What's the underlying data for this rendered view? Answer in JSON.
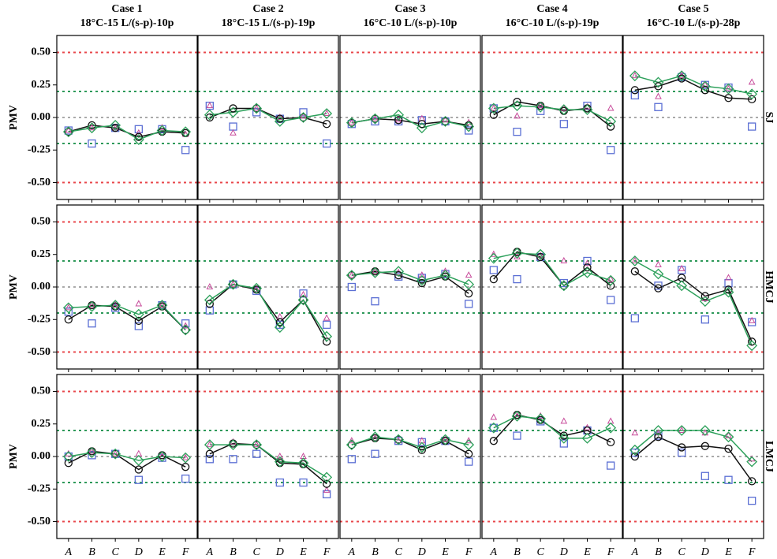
{
  "chart_data": {
    "type": "line",
    "y_label": "PMV",
    "categories": [
      "A",
      "B",
      "C",
      "D",
      "E",
      "F"
    ],
    "ylim": [
      -0.63,
      0.63
    ],
    "yticks": [
      {
        "value": 0.5,
        "label": "0.50"
      },
      {
        "value": 0.25,
        "label": "0.25"
      },
      {
        "value": 0,
        "label": "0.00"
      },
      {
        "value": -0.25,
        "label": "-0.25"
      },
      {
        "value": -0.5,
        "label": "-0.50"
      }
    ],
    "reference_lines": [
      {
        "value": 0.5,
        "color": "#e8474b"
      },
      {
        "value": 0.2,
        "color": "#2e9a5a"
      },
      {
        "value": 0,
        "color": "#aaaaaa"
      },
      {
        "value": -0.2,
        "color": "#2e9a5a"
      },
      {
        "value": -0.5,
        "color": "#e8474b"
      }
    ],
    "columns": [
      {
        "title": "Case 1",
        "subtitle": "18°C-15 L/(s-p)-10p"
      },
      {
        "title": "Case 2",
        "subtitle": "18°C-15 L/(s-p)-19p"
      },
      {
        "title": "Case 3",
        "subtitle": "16°C-10 L/(s-p)-10p"
      },
      {
        "title": "Case 4",
        "subtitle": "16°C-10 L/(s-p)-19p"
      },
      {
        "title": "Case 5",
        "subtitle": "16°C-10 L/(s-p)-28p"
      }
    ],
    "rows": [
      "SJ",
      "HMCJ",
      "LMCJ"
    ],
    "series": [
      {
        "marker": "square",
        "color": "#5b6fd4",
        "line": false
      },
      {
        "marker": "triangle",
        "color": "#c74a9a",
        "line": false
      },
      {
        "marker": "circle",
        "color": "#111111",
        "line": true
      },
      {
        "marker": "diamond",
        "color": "#2ca05a",
        "line": true
      }
    ],
    "panels": [
      [
        [
          -0.1,
          -0.2,
          -0.08,
          -0.09,
          -0.09,
          -0.25
        ],
        [
          -0.1,
          -0.08,
          -0.08,
          -0.12,
          -0.08,
          -0.13
        ],
        [
          -0.11,
          -0.06,
          -0.08,
          -0.15,
          -0.11,
          -0.12
        ],
        [
          -0.11,
          -0.08,
          -0.06,
          -0.17,
          -0.1,
          -0.11
        ]
      ],
      [
        [
          0.09,
          -0.07,
          0.04,
          -0.01,
          0.04,
          -0.2
        ],
        [
          0.09,
          -0.12,
          0.07,
          0.0,
          0.01,
          0.03
        ],
        [
          0.0,
          0.07,
          0.07,
          -0.01,
          0.0,
          -0.05
        ],
        [
          0.02,
          0.04,
          0.07,
          -0.03,
          0.0,
          0.03
        ]
      ],
      [
        [
          -0.05,
          -0.03,
          -0.03,
          -0.02,
          -0.03,
          -0.1
        ],
        [
          -0.04,
          -0.01,
          -0.02,
          -0.01,
          -0.02,
          -0.04
        ],
        [
          -0.04,
          -0.01,
          -0.02,
          -0.05,
          -0.03,
          -0.06
        ],
        [
          -0.04,
          -0.01,
          0.02,
          -0.08,
          -0.03,
          -0.07
        ]
      ],
      [
        [
          0.07,
          -0.11,
          0.05,
          -0.05,
          0.09,
          -0.25
        ],
        [
          0.07,
          0.01,
          0.09,
          0.07,
          0.08,
          0.07
        ],
        [
          0.02,
          0.12,
          0.09,
          0.05,
          0.07,
          -0.07
        ],
        [
          0.07,
          0.09,
          0.08,
          0.06,
          0.06,
          -0.03
        ]
      ],
      [
        [
          0.17,
          0.08,
          0.31,
          0.25,
          0.23,
          -0.07
        ],
        [
          0.32,
          0.16,
          0.32,
          0.25,
          0.22,
          0.27
        ],
        [
          0.21,
          0.24,
          0.3,
          0.21,
          0.15,
          0.14
        ],
        [
          0.32,
          0.27,
          0.32,
          0.24,
          0.22,
          0.18
        ]
      ],
      [
        [
          -0.19,
          -0.28,
          -0.16,
          -0.3,
          -0.14,
          -0.28
        ],
        [
          -0.16,
          -0.14,
          -0.14,
          -0.13,
          -0.14,
          -0.3
        ],
        [
          -0.25,
          -0.14,
          -0.15,
          -0.26,
          -0.15,
          -0.33
        ],
        [
          -0.16,
          -0.15,
          -0.14,
          -0.21,
          -0.14,
          -0.33
        ]
      ],
      [
        [
          -0.18,
          0.02,
          -0.03,
          -0.29,
          -0.05,
          -0.29
        ],
        [
          0.0,
          0.02,
          -0.02,
          -0.23,
          -0.06,
          -0.24
        ],
        [
          -0.13,
          0.02,
          -0.02,
          -0.27,
          -0.1,
          -0.42
        ],
        [
          -0.1,
          0.02,
          -0.01,
          -0.31,
          -0.1,
          -0.38
        ]
      ],
      [
        [
          0.0,
          -0.11,
          0.08,
          0.07,
          0.1,
          -0.13
        ],
        [
          0.09,
          0.12,
          0.11,
          0.09,
          0.12,
          0.09
        ],
        [
          0.09,
          0.12,
          0.09,
          0.03,
          0.08,
          -0.05
        ],
        [
          0.09,
          0.11,
          0.12,
          0.05,
          0.09,
          0.02
        ]
      ],
      [
        [
          0.13,
          0.06,
          0.23,
          0.03,
          0.2,
          -0.1
        ],
        [
          0.25,
          0.23,
          0.24,
          0.2,
          0.18,
          0.06
        ],
        [
          0.06,
          0.27,
          0.23,
          0.01,
          0.15,
          0.01
        ],
        [
          0.22,
          0.26,
          0.25,
          0.01,
          0.11,
          0.05
        ]
      ],
      [
        [
          -0.24,
          0.01,
          0.13,
          -0.25,
          0.03,
          -0.27
        ],
        [
          0.2,
          0.17,
          0.14,
          -0.09,
          0.07,
          -0.26
        ],
        [
          0.12,
          -0.01,
          0.07,
          -0.07,
          -0.02,
          -0.42
        ],
        [
          0.2,
          0.1,
          0.01,
          -0.11,
          -0.04,
          -0.45
        ]
      ],
      [
        [
          0.0,
          0.01,
          0.02,
          -0.18,
          -0.01,
          -0.17
        ],
        [
          0.02,
          0.04,
          0.02,
          0.02,
          0.0,
          -0.01
        ],
        [
          -0.05,
          0.04,
          0.02,
          -0.1,
          0.01,
          -0.08
        ],
        [
          0.0,
          0.03,
          0.02,
          -0.03,
          0.0,
          -0.01
        ]
      ],
      [
        [
          -0.02,
          -0.02,
          0.02,
          -0.2,
          -0.2,
          -0.29
        ],
        [
          0.09,
          0.11,
          0.09,
          0.0,
          0.0,
          -0.26
        ],
        [
          0.02,
          0.1,
          0.09,
          -0.05,
          -0.06,
          -0.21
        ],
        [
          0.09,
          0.09,
          0.09,
          -0.04,
          -0.05,
          -0.16
        ]
      ],
      [
        [
          -0.02,
          0.02,
          0.12,
          0.11,
          0.12,
          -0.04
        ],
        [
          0.12,
          0.14,
          0.12,
          0.12,
          0.13,
          0.12
        ],
        [
          0.09,
          0.14,
          0.13,
          0.05,
          0.12,
          0.02
        ],
        [
          0.09,
          0.15,
          0.13,
          0.07,
          0.13,
          0.09
        ]
      ],
      [
        [
          0.22,
          0.16,
          0.27,
          0.1,
          0.2,
          -0.07
        ],
        [
          0.3,
          0.31,
          0.31,
          0.27,
          0.22,
          0.27
        ],
        [
          0.12,
          0.32,
          0.28,
          0.16,
          0.2,
          0.11
        ],
        [
          0.22,
          0.31,
          0.29,
          0.14,
          0.14,
          0.22
        ]
      ],
      [
        [
          0.03,
          0.16,
          0.03,
          -0.15,
          -0.18,
          -0.34
        ],
        [
          0.18,
          0.18,
          0.2,
          0.18,
          0.16,
          -0.02
        ],
        [
          0.0,
          0.15,
          0.07,
          0.08,
          0.06,
          -0.19
        ],
        [
          0.05,
          0.2,
          0.2,
          0.2,
          0.15,
          -0.04
        ]
      ]
    ]
  }
}
